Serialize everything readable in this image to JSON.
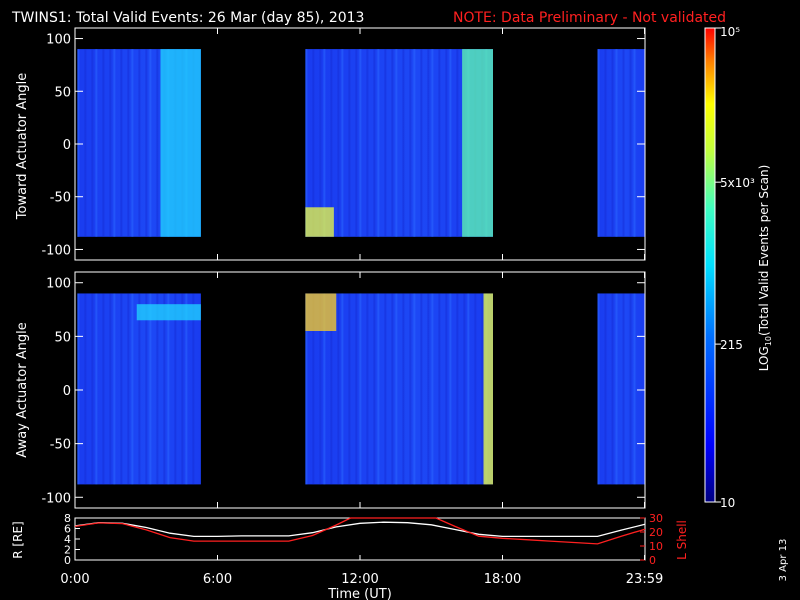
{
  "header": {
    "title": "TWINS1: Total Valid Events: 26 Mar (day  85), 2013",
    "note": "NOTE: Data Preliminary - Not validated"
  },
  "stamp": "3 Apr 13",
  "colors": {
    "note": "#ff2020",
    "axis": "#ffffff",
    "orbit_r": "#ffffff",
    "orbit_l": "#ff2020",
    "background": "#000000"
  },
  "chart_data": [
    {
      "type": "heatmap",
      "panel": "toward",
      "ylabel": "Toward Actuator Angle",
      "ylim": [
        -110,
        110
      ],
      "yticks": [
        100,
        50,
        0,
        -50,
        -100
      ],
      "xlim": [
        0,
        24
      ],
      "angle_range": [
        -88,
        90
      ],
      "data_blocks_hours": [
        [
          0.1,
          5.3
        ],
        [
          9.7,
          17.6
        ],
        [
          22.0,
          24.0
        ]
      ],
      "bright_regions": [
        {
          "hours": [
            3.6,
            5.3
          ],
          "angles": [
            -88,
            90
          ],
          "level": "cyan"
        },
        {
          "hours": [
            9.7,
            10.9
          ],
          "angles": [
            -88,
            -60
          ],
          "level": "yellow"
        },
        {
          "hours": [
            16.3,
            17.6
          ],
          "angles": [
            -88,
            90
          ],
          "level": "cyan-yellow"
        }
      ]
    },
    {
      "type": "heatmap",
      "panel": "away",
      "ylabel": "Away Actuator Angle",
      "ylim": [
        -110,
        110
      ],
      "yticks": [
        100,
        50,
        0,
        -50,
        -100
      ],
      "xlim": [
        0,
        24
      ],
      "angle_range": [
        -88,
        90
      ],
      "data_blocks_hours": [
        [
          0.1,
          5.3
        ],
        [
          9.7,
          17.6
        ],
        [
          22.0,
          24.0
        ]
      ],
      "bright_regions": [
        {
          "hours": [
            2.6,
            5.3
          ],
          "angles": [
            65,
            80
          ],
          "level": "cyan"
        },
        {
          "hours": [
            9.7,
            11.0
          ],
          "angles": [
            55,
            90
          ],
          "level": "yellow-red"
        },
        {
          "hours": [
            17.2,
            17.6
          ],
          "angles": [
            -88,
            90
          ],
          "level": "yellow"
        }
      ]
    },
    {
      "type": "colorbar",
      "label": "LOG10(Total Valid Events per Scan)",
      "label_main": "LOG",
      "label_sub": "10",
      "label_rest": "(Total Valid Events per Scan)",
      "ticks": [
        "10",
        "215",
        "5x10³",
        "10⁵"
      ],
      "tick_values": [
        10,
        215,
        5000,
        100000
      ],
      "range": [
        10,
        100000
      ],
      "scale": "log"
    },
    {
      "type": "line",
      "panel": "orbit",
      "xlabel": "Time (UT)",
      "xticks": [
        "0:00",
        "6:00",
        "12:00",
        "18:00",
        "23:59"
      ],
      "xtick_hours": [
        0,
        6,
        12,
        18,
        23.98
      ],
      "ylabel_left": "R [RE]",
      "ylabel_right": "L Shell",
      "ylim_left": [
        0,
        8
      ],
      "ylim_right": [
        0,
        30
      ],
      "yticks_left": [
        0,
        2,
        4,
        6,
        8
      ],
      "yticks_right": [
        0,
        10,
        20,
        30
      ],
      "series": [
        {
          "axis": "left",
          "x": [
            0,
            1,
            2,
            3,
            4,
            5,
            6,
            7,
            8,
            9,
            10,
            11,
            12,
            13,
            14,
            15,
            16,
            17,
            18,
            19,
            20,
            21,
            22,
            23,
            24
          ],
          "y": [
            6.5,
            7.1,
            7.0,
            6.2,
            5.1,
            4.5,
            4.5,
            4.6,
            4.6,
            4.6,
            5.2,
            6.3,
            7.0,
            7.2,
            7.1,
            6.7,
            5.8,
            4.9,
            4.5,
            4.5,
            4.5,
            4.5,
            4.5,
            5.7,
            6.8
          ]
        },
        {
          "axis": "right",
          "x": [
            0,
            1,
            2,
            3,
            4,
            5,
            6,
            7,
            8,
            9,
            10,
            11,
            11.6,
            15.2,
            16,
            17,
            18,
            19,
            20,
            21,
            22,
            23,
            24
          ],
          "y": [
            24,
            26.5,
            26,
            21.5,
            16,
            13.5,
            13.5,
            13.5,
            13.5,
            13.5,
            17.5,
            25,
            30,
            30,
            24,
            17,
            15.5,
            14.5,
            13.5,
            12.5,
            11.5,
            17,
            22
          ]
        }
      ]
    }
  ]
}
